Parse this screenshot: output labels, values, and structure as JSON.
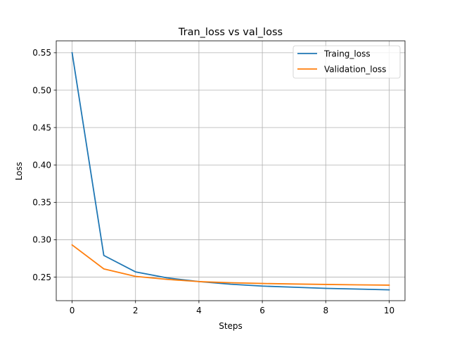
{
  "chart_data": {
    "type": "line",
    "title": "Tran_loss vs val_loss",
    "xlabel": "Steps",
    "ylabel": "Loss",
    "xlim": [
      -0.5,
      10.5
    ],
    "ylim": [
      0.2185,
      0.5659
    ],
    "xticks": [
      0,
      2,
      4,
      6,
      8,
      10
    ],
    "yticks": [
      0.25,
      0.3,
      0.35,
      0.4,
      0.45,
      0.5,
      0.55
    ],
    "ytick_labels": [
      "0.25",
      "0.30",
      "0.35",
      "0.40",
      "0.45",
      "0.50",
      "0.55"
    ],
    "xtick_labels": [
      "0",
      "2",
      "4",
      "6",
      "8",
      "10"
    ],
    "grid": true,
    "legend_position": "top-right",
    "x": [
      0,
      1,
      2,
      3,
      4,
      5,
      6,
      7,
      8,
      9,
      10
    ],
    "series": [
      {
        "name": "Traing_loss",
        "color": "#1f77b4",
        "values": [
          0.55,
          0.279,
          0.257,
          0.249,
          0.244,
          0.2405,
          0.238,
          0.2365,
          0.235,
          0.234,
          0.233
        ]
      },
      {
        "name": "Validation_loss",
        "color": "#ff7f0e",
        "values": [
          0.293,
          0.261,
          0.251,
          0.247,
          0.244,
          0.2425,
          0.2415,
          0.2408,
          0.2402,
          0.2397,
          0.2393
        ]
      }
    ]
  }
}
